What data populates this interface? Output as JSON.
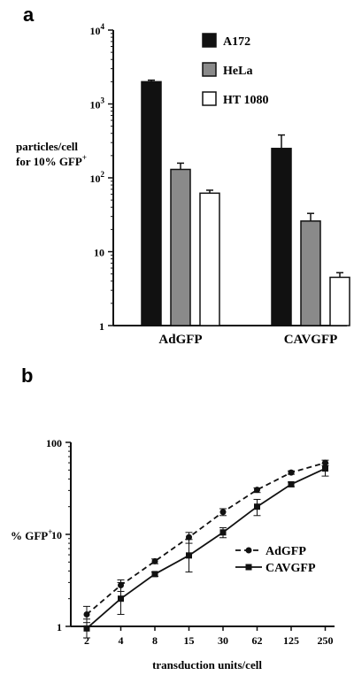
{
  "chart_data": [
    {
      "panel": "a",
      "type": "bar",
      "yscale": "log",
      "ylim": [
        1,
        10000
      ],
      "ylabel_lines": [
        "particles/cell",
        "for 10% GFP"
      ],
      "ylabel_sup": "+",
      "y_ticks": [
        {
          "value": 1,
          "base": "1",
          "exp": ""
        },
        {
          "value": 10,
          "base": "10",
          "exp": ""
        },
        {
          "value": 100,
          "base": "10",
          "exp": "2"
        },
        {
          "value": 1000,
          "base": "10",
          "exp": "3"
        },
        {
          "value": 10000,
          "base": "10",
          "exp": "4"
        }
      ],
      "categories": [
        "AdGFP",
        "CAVGFP"
      ],
      "series": [
        {
          "name": "A172",
          "color": "#111111",
          "values": [
            2000,
            250
          ],
          "errors": [
            2100,
            380
          ]
        },
        {
          "name": "HeLa",
          "color": "#8a8a8a",
          "values": [
            130,
            26
          ],
          "errors": [
            158,
            33
          ]
        },
        {
          "name": "HT 1080",
          "color": "#ffffff",
          "values": [
            62,
            4.5
          ],
          "errors": [
            68,
            5.2
          ]
        }
      ],
      "legend": "top-right"
    },
    {
      "panel": "b",
      "type": "line",
      "yscale": "log",
      "ylim": [
        1,
        100
      ],
      "ylabel": "% GFP",
      "ylabel_sup": "+",
      "xlabel": "transduction units/cell",
      "y_ticks": [
        "1",
        "10",
        "100"
      ],
      "x": [
        "2",
        "4",
        "8",
        "15",
        "30",
        "62",
        "125",
        "250"
      ],
      "series": [
        {
          "name": "AdGFP",
          "style": "dashed",
          "marker": "circle",
          "values": [
            1.35,
            2.8,
            5.1,
            9.3,
            17.5,
            30.5,
            47,
            60
          ],
          "err_low": [
            1.1,
            2.4,
            4.8,
            8.0,
            16.0,
            28.5,
            45,
            56
          ],
          "err_high": [
            1.65,
            3.2,
            5.4,
            10.5,
            19.0,
            32.0,
            49,
            64
          ]
        },
        {
          "name": "CAVGFP",
          "style": "solid",
          "marker": "square",
          "values": [
            0.95,
            2.0,
            3.7,
            5.9,
            10.5,
            20,
            35,
            52
          ],
          "err_low": [
            0.75,
            1.35,
            3.5,
            3.9,
            9.2,
            16,
            33,
            43
          ],
          "err_high": [
            1.2,
            3.0,
            3.9,
            8.8,
            11.8,
            24,
            37,
            59
          ]
        }
      ],
      "legend": "bottom-right"
    }
  ]
}
